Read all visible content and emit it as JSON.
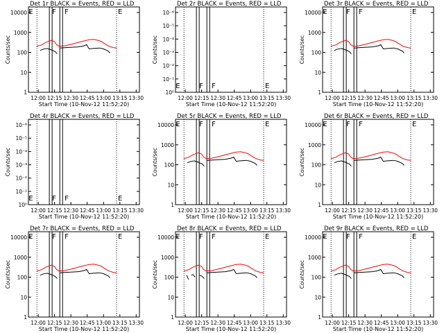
{
  "chart_data": [
    {
      "type": "line",
      "title": "Det 1r BLACK = Events, RED = LLD",
      "xlabel": "Start Time (10-Nov-12 11:52:20)",
      "ylabel": "Counts/sec",
      "yscale": "log",
      "yticks": [
        "1",
        "10",
        "100",
        "1000",
        "10000"
      ],
      "xticks": [
        "12:00",
        "12:15",
        "12:30",
        "12:45",
        "13:00",
        "13:15",
        "13:30"
      ],
      "flag_labels": [
        "E",
        "F",
        "F",
        "E"
      ],
      "series": [
        {
          "color": "#ff0000",
          "profile": "red_lld"
        },
        {
          "color": "#000000",
          "profile": "black_events"
        }
      ]
    },
    {
      "type": "line",
      "title": "Det 2r BLACK = Events, RED = LLD",
      "xlabel": "Start Time (10-Nov-12 11:52:20)",
      "ylabel": "Counts/sec",
      "yscale": "log",
      "yticks": [
        "10⁰",
        "10⁻¹",
        "10⁻²",
        "10⁻³",
        "10⁻⁴",
        "10⁻⁵",
        "10⁻⁶"
      ],
      "xticks": [
        "12:00",
        "12:15",
        "12:30",
        "12:45",
        "13:00",
        "13:15",
        "13:30"
      ],
      "flag_labels": [
        "E",
        "F",
        "F",
        "E"
      ],
      "series": []
    },
    {
      "type": "line",
      "title": "Det 3r BLACK = Events, RED = LLD",
      "xlabel": "Start Time (10-Nov-12 11:52:20)",
      "ylabel": "Counts/sec",
      "yscale": "log",
      "yticks": [
        "1",
        "10",
        "100",
        "1000",
        "10000"
      ],
      "xticks": [
        "12:00",
        "12:15",
        "12:30",
        "12:45",
        "13:00",
        "13:15",
        "13:30"
      ],
      "flag_labels": [
        "E",
        "F",
        "F",
        "E"
      ],
      "series": [
        {
          "color": "#ff0000",
          "profile": "red_lld"
        },
        {
          "color": "#000000",
          "profile": "black_events"
        }
      ]
    },
    {
      "type": "line",
      "title": "Det 4r BLACK = Events, RED = LLD",
      "xlabel": "Start Time (10-Nov-12 11:52:20)",
      "ylabel": "Counts/sec",
      "yscale": "log",
      "yticks": [
        "10⁰",
        "10⁻¹",
        "10⁻²",
        "10⁻³",
        "10⁻⁴",
        "10⁻⁵",
        "10⁻⁶"
      ],
      "xticks": [
        "12:00",
        "12:15",
        "12:30",
        "12:45",
        "13:00",
        "13:15",
        "13:30"
      ],
      "flag_labels": [
        "E",
        "F",
        "F",
        "E"
      ],
      "series": []
    },
    {
      "type": "line",
      "title": "Det 5r BLACK = Events, RED = LLD",
      "xlabel": "Start Time (10-Nov-12 11:52:20)",
      "ylabel": "Counts/sec",
      "yscale": "log",
      "yticks": [
        "1",
        "10",
        "100",
        "1000",
        "10000"
      ],
      "xticks": [
        "12:00",
        "12:15",
        "12:30",
        "12:45",
        "13:00",
        "13:15",
        "13:30"
      ],
      "flag_labels": [
        "E",
        "F",
        "F",
        "E"
      ],
      "series": [
        {
          "color": "#ff0000",
          "profile": "red_lld"
        },
        {
          "color": "#000000",
          "profile": "black_events"
        }
      ]
    },
    {
      "type": "line",
      "title": "Det 6r BLACK = Events, RED = LLD",
      "xlabel": "Start Time (10-Nov-12 11:52:20)",
      "ylabel": "Counts/sec",
      "yscale": "log",
      "yticks": [
        "1",
        "10",
        "100",
        "1000",
        "10000"
      ],
      "xticks": [
        "12:00",
        "12:15",
        "12:30",
        "12:45",
        "13:00",
        "13:15",
        "13:30"
      ],
      "flag_labels": [
        "E",
        "F",
        "F",
        "E"
      ],
      "series": [
        {
          "color": "#ff0000",
          "profile": "red_lld"
        },
        {
          "color": "#000000",
          "profile": "black_events"
        }
      ]
    },
    {
      "type": "line",
      "title": "Det 7r BLACK = Events, RED = LLD",
      "xlabel": "Start Time (10-Nov-12 11:52:20)",
      "ylabel": "Counts/sec",
      "yscale": "log",
      "yticks": [
        "1",
        "10",
        "100",
        "1000",
        "10000"
      ],
      "xticks": [
        "12:00",
        "12:15",
        "12:30",
        "12:45",
        "13:00",
        "13:15",
        "13:30"
      ],
      "flag_labels": [
        "E",
        "F",
        "F",
        "E"
      ],
      "series": [
        {
          "color": "#ff0000",
          "profile": "red_lld"
        },
        {
          "color": "#000000",
          "profile": "black_events"
        }
      ]
    },
    {
      "type": "line",
      "title": "Det 8r BLACK = Events, RED = LLD",
      "xlabel": "Start Time (10-Nov-12 11:52:20)",
      "ylabel": "Counts/sec",
      "yscale": "log",
      "yticks": [
        "1",
        "10",
        "100",
        "1000",
        "10000"
      ],
      "xticks": [
        "12:00",
        "12:15",
        "12:30",
        "12:45",
        "13:00",
        "13:15",
        "13:30"
      ],
      "flag_labels": [
        "E",
        "F",
        "F",
        "E"
      ],
      "series": [
        {
          "color": "#ff0000",
          "profile": "red_lld"
        },
        {
          "color": "#000000",
          "profile": "black_events_8"
        }
      ]
    },
    {
      "type": "line",
      "title": "Det 9r BLACK = Events, RED = LLD",
      "xlabel": "Start Time (10-Nov-12 11:52:20)",
      "ylabel": "Counts/sec",
      "yscale": "log",
      "yticks": [
        "1",
        "10",
        "100",
        "1000",
        "10000"
      ],
      "xticks": [
        "12:00",
        "12:15",
        "12:30",
        "12:45",
        "13:00",
        "13:15",
        "13:30"
      ],
      "flag_labels": [
        "E",
        "F",
        "F",
        "E"
      ],
      "series": [
        {
          "color": "#ff0000",
          "profile": "red_lld"
        },
        {
          "color": "#000000",
          "profile": "black_events"
        }
      ]
    }
  ],
  "profiles": {
    "red_lld": [
      [
        11.98,
        250
      ],
      [
        12.05,
        290
      ],
      [
        12.12,
        400
      ],
      [
        12.17,
        460
      ],
      [
        12.2,
        500
      ],
      [
        12.25,
        430
      ],
      [
        12.28,
        300
      ],
      [
        12.32,
        250
      ],
      [
        12.4,
        260
      ],
      [
        12.5,
        310
      ],
      [
        12.6,
        380
      ],
      [
        12.7,
        470
      ],
      [
        12.78,
        540
      ],
      [
        12.85,
        560
      ],
      [
        12.92,
        500
      ],
      [
        12.97,
        430
      ],
      [
        13.02,
        330
      ],
      [
        13.08,
        250
      ],
      [
        13.15,
        210
      ],
      [
        13.2,
        200
      ]
    ],
    "black_events": [
      [
        12.03,
        150
      ],
      [
        12.08,
        175
      ],
      [
        12.14,
        190
      ],
      [
        12.2,
        160
      ],
      [
        12.26,
        130
      ],
      [
        12.29,
        100
      ],
      [
        12.31,
        null
      ],
      [
        12.33,
        200
      ],
      [
        12.42,
        210
      ],
      [
        12.52,
        220
      ],
      [
        12.61,
        230
      ],
      [
        12.7,
        260
      ],
      [
        12.74,
        300
      ],
      [
        12.78,
        180
      ],
      [
        12.84,
        190
      ],
      [
        12.94,
        200
      ],
      [
        13.0,
        180
      ],
      [
        13.07,
        140
      ],
      [
        13.1,
        110
      ]
    ],
    "black_events_8": [
      [
        12.02,
        150
      ],
      [
        12.05,
        90
      ],
      [
        12.07,
        null
      ],
      [
        12.09,
        150
      ],
      [
        12.12,
        160
      ],
      [
        12.15,
        120
      ],
      [
        12.18,
        null
      ],
      [
        12.22,
        150
      ],
      [
        12.26,
        130
      ],
      [
        12.29,
        100
      ],
      [
        12.31,
        null
      ],
      [
        12.33,
        200
      ],
      [
        12.42,
        210
      ],
      [
        12.52,
        220
      ],
      [
        12.61,
        230
      ],
      [
        12.7,
        260
      ],
      [
        12.74,
        300
      ],
      [
        12.78,
        180
      ],
      [
        12.84,
        190
      ],
      [
        12.94,
        200
      ],
      [
        13.0,
        180
      ],
      [
        13.07,
        140
      ],
      [
        13.1,
        110
      ]
    ]
  }
}
